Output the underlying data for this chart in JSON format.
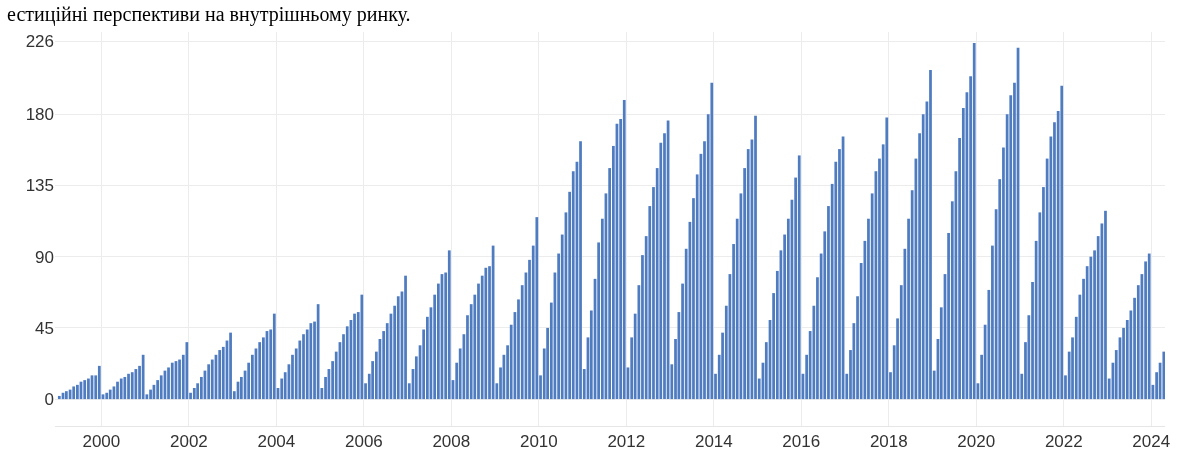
{
  "chart_data": {
    "type": "bar",
    "annotations": [
      "естиційні перспективи на внутрішньому ринку."
    ],
    "x": [
      "1999-01",
      "1999-02",
      "1999-03",
      "1999-04",
      "1999-05",
      "1999-06",
      "1999-07",
      "1999-08",
      "1999-09",
      "1999-10",
      "1999-11",
      "1999-12",
      "2000-01",
      "2000-02",
      "2000-03",
      "2000-04",
      "2000-05",
      "2000-06",
      "2000-07",
      "2000-08",
      "2000-09",
      "2000-10",
      "2000-11",
      "2000-12",
      "2001-01",
      "2001-02",
      "2001-03",
      "2001-04",
      "2001-05",
      "2001-06",
      "2001-07",
      "2001-08",
      "2001-09",
      "2001-10",
      "2001-11",
      "2001-12",
      "2002-01",
      "2002-02",
      "2002-03",
      "2002-04",
      "2002-05",
      "2002-06",
      "2002-07",
      "2002-08",
      "2002-09",
      "2002-10",
      "2002-11",
      "2002-12",
      "2003-01",
      "2003-02",
      "2003-03",
      "2003-04",
      "2003-05",
      "2003-06",
      "2003-07",
      "2003-08",
      "2003-09",
      "2003-10",
      "2003-11",
      "2003-12",
      "2004-01",
      "2004-02",
      "2004-03",
      "2004-04",
      "2004-05",
      "2004-06",
      "2004-07",
      "2004-08",
      "2004-09",
      "2004-10",
      "2004-11",
      "2004-12",
      "2005-01",
      "2005-02",
      "2005-03",
      "2005-04",
      "2005-05",
      "2005-06",
      "2005-07",
      "2005-08",
      "2005-09",
      "2005-10",
      "2005-11",
      "2005-12",
      "2006-01",
      "2006-02",
      "2006-03",
      "2006-04",
      "2006-05",
      "2006-06",
      "2006-07",
      "2006-08",
      "2006-09",
      "2006-10",
      "2006-11",
      "2006-12",
      "2007-01",
      "2007-02",
      "2007-03",
      "2007-04",
      "2007-05",
      "2007-06",
      "2007-07",
      "2007-08",
      "2007-09",
      "2007-10",
      "2007-11",
      "2007-12",
      "2008-01",
      "2008-02",
      "2008-03",
      "2008-04",
      "2008-05",
      "2008-06",
      "2008-07",
      "2008-08",
      "2008-09",
      "2008-10",
      "2008-11",
      "2008-12",
      "2009-01",
      "2009-02",
      "2009-03",
      "2009-04",
      "2009-05",
      "2009-06",
      "2009-07",
      "2009-08",
      "2009-09",
      "2009-10",
      "2009-11",
      "2009-12",
      "2010-01",
      "2010-02",
      "2010-03",
      "2010-04",
      "2010-05",
      "2010-06",
      "2010-07",
      "2010-08",
      "2010-09",
      "2010-10",
      "2010-11",
      "2010-12",
      "2011-01",
      "2011-02",
      "2011-03",
      "2011-04",
      "2011-05",
      "2011-06",
      "2011-07",
      "2011-08",
      "2011-09",
      "2011-10",
      "2011-11",
      "2011-12",
      "2012-01",
      "2012-02",
      "2012-03",
      "2012-04",
      "2012-05",
      "2012-06",
      "2012-07",
      "2012-08",
      "2012-09",
      "2012-10",
      "2012-11",
      "2012-12",
      "2013-01",
      "2013-02",
      "2013-03",
      "2013-04",
      "2013-05",
      "2013-06",
      "2013-07",
      "2013-08",
      "2013-09",
      "2013-10",
      "2013-11",
      "2013-12",
      "2014-01",
      "2014-02",
      "2014-03",
      "2014-04",
      "2014-05",
      "2014-06",
      "2014-07",
      "2014-08",
      "2014-09",
      "2014-10",
      "2014-11",
      "2014-12",
      "2015-01",
      "2015-02",
      "2015-03",
      "2015-04",
      "2015-05",
      "2015-06",
      "2015-07",
      "2015-08",
      "2015-09",
      "2015-10",
      "2015-11",
      "2015-12",
      "2016-01",
      "2016-02",
      "2016-03",
      "2016-04",
      "2016-05",
      "2016-06",
      "2016-07",
      "2016-08",
      "2016-09",
      "2016-10",
      "2016-11",
      "2016-12",
      "2017-01",
      "2017-02",
      "2017-03",
      "2017-04",
      "2017-05",
      "2017-06",
      "2017-07",
      "2017-08",
      "2017-09",
      "2017-10",
      "2017-11",
      "2017-12",
      "2018-01",
      "2018-02",
      "2018-03",
      "2018-04",
      "2018-05",
      "2018-06",
      "2018-07",
      "2018-08",
      "2018-09",
      "2018-10",
      "2018-11",
      "2018-12",
      "2019-01",
      "2019-02",
      "2019-03",
      "2019-04",
      "2019-05",
      "2019-06",
      "2019-07",
      "2019-08",
      "2019-09",
      "2019-10",
      "2019-11",
      "2019-12",
      "2020-01",
      "2020-02",
      "2020-03",
      "2020-04",
      "2020-05",
      "2020-06",
      "2020-07",
      "2020-08",
      "2020-09",
      "2020-10",
      "2020-11",
      "2020-12",
      "2021-01",
      "2021-02",
      "2021-03",
      "2021-04",
      "2021-05",
      "2021-06",
      "2021-07",
      "2021-08",
      "2021-09",
      "2021-10",
      "2021-11",
      "2021-12",
      "2022-01",
      "2022-02",
      "2022-03",
      "2022-04",
      "2022-05",
      "2022-06",
      "2022-07",
      "2022-08",
      "2022-09",
      "2022-10",
      "2022-11",
      "2022-12",
      "2023-01",
      "2023-02",
      "2023-03",
      "2023-04",
      "2023-05",
      "2023-06",
      "2023-07",
      "2023-08",
      "2023-09",
      "2023-10",
      "2023-11",
      "2023-12",
      "2024-01",
      "2024-02",
      "2024-03",
      "2024-04"
    ],
    "values": [
      2,
      4,
      5,
      6,
      8,
      9,
      11,
      12,
      13,
      15,
      15,
      21,
      3,
      4,
      6,
      8,
      11,
      13,
      14,
      16,
      17,
      19,
      21,
      28,
      3,
      6,
      9,
      12,
      15,
      18,
      20,
      23,
      24,
      25,
      28,
      36,
      4,
      7,
      10,
      14,
      18,
      22,
      25,
      28,
      31,
      33,
      37,
      42,
      5,
      11,
      14,
      18,
      23,
      28,
      32,
      36,
      39,
      43,
      44,
      54,
      7,
      13,
      17,
      22,
      28,
      32,
      37,
      41,
      44,
      48,
      49,
      60,
      7,
      14,
      19,
      24,
      30,
      36,
      41,
      46,
      50,
      54,
      55,
      66,
      10,
      16,
      24,
      30,
      38,
      43,
      48,
      54,
      59,
      65,
      68,
      78,
      10,
      19,
      27,
      34,
      44,
      52,
      58,
      66,
      73,
      79,
      80,
      94,
      12,
      23,
      32,
      41,
      53,
      60,
      66,
      73,
      78,
      83,
      84,
      97,
      10,
      20,
      28,
      34,
      47,
      55,
      63,
      72,
      80,
      88,
      97,
      115,
      15,
      32,
      45,
      61,
      80,
      92,
      104,
      118,
      131,
      144,
      150,
      163,
      19,
      39,
      56,
      76,
      99,
      114,
      130,
      146,
      160,
      174,
      177,
      189,
      20,
      39,
      54,
      72,
      91,
      103,
      122,
      134,
      146,
      162,
      168,
      176,
      22,
      38,
      55,
      73,
      95,
      112,
      127,
      142,
      155,
      163,
      180,
      200,
      16,
      28,
      42,
      59,
      79,
      98,
      114,
      130,
      146,
      158,
      164,
      179,
      13,
      23,
      36,
      50,
      67,
      81,
      94,
      104,
      114,
      126,
      140,
      154,
      16,
      28,
      43,
      59,
      77,
      92,
      106,
      122,
      136,
      150,
      158,
      166,
      16,
      31,
      48,
      65,
      86,
      100,
      114,
      130,
      144,
      152,
      161,
      178,
      17,
      34,
      51,
      72,
      95,
      114,
      132,
      152,
      168,
      180,
      188,
      208,
      18,
      38,
      58,
      79,
      105,
      125,
      144,
      165,
      184,
      194,
      204,
      225,
      10,
      28,
      47,
      69,
      97,
      120,
      139,
      159,
      180,
      192,
      200,
      222,
      16,
      36,
      53,
      74,
      100,
      118,
      134,
      152,
      166,
      175,
      182,
      198,
      15,
      30,
      39,
      52,
      66,
      76,
      84,
      90,
      94,
      103,
      111,
      119,
      13,
      23,
      31,
      39,
      45,
      50,
      56,
      64,
      72,
      79,
      87,
      92,
      9,
      17,
      23,
      30
    ],
    "color": "#4f7cc0",
    "xlim": [
      "1998-12-10",
      "2024-04-25"
    ],
    "xticks": [
      {
        "value": "2000-01-01",
        "label": "2000"
      },
      {
        "value": "2002-01-01",
        "label": "2002"
      },
      {
        "value": "2004-01-01",
        "label": "2004"
      },
      {
        "value": "2006-01-01",
        "label": "2006"
      },
      {
        "value": "2008-01-01",
        "label": "2008"
      },
      {
        "value": "2010-01-01",
        "label": "2010"
      },
      {
        "value": "2012-01-01",
        "label": "2012"
      },
      {
        "value": "2014-01-01",
        "label": "2014"
      },
      {
        "value": "2016-01-01",
        "label": "2016"
      },
      {
        "value": "2018-01-01",
        "label": "2018"
      },
      {
        "value": "2020-01-01",
        "label": "2020"
      },
      {
        "value": "2022-01-01",
        "label": "2022"
      },
      {
        "value": "2024-01-01",
        "label": "2024"
      }
    ],
    "ylim": [
      -17,
      232
    ],
    "yticks": [
      0,
      45,
      90,
      135,
      180,
      226
    ],
    "grid": true
  }
}
